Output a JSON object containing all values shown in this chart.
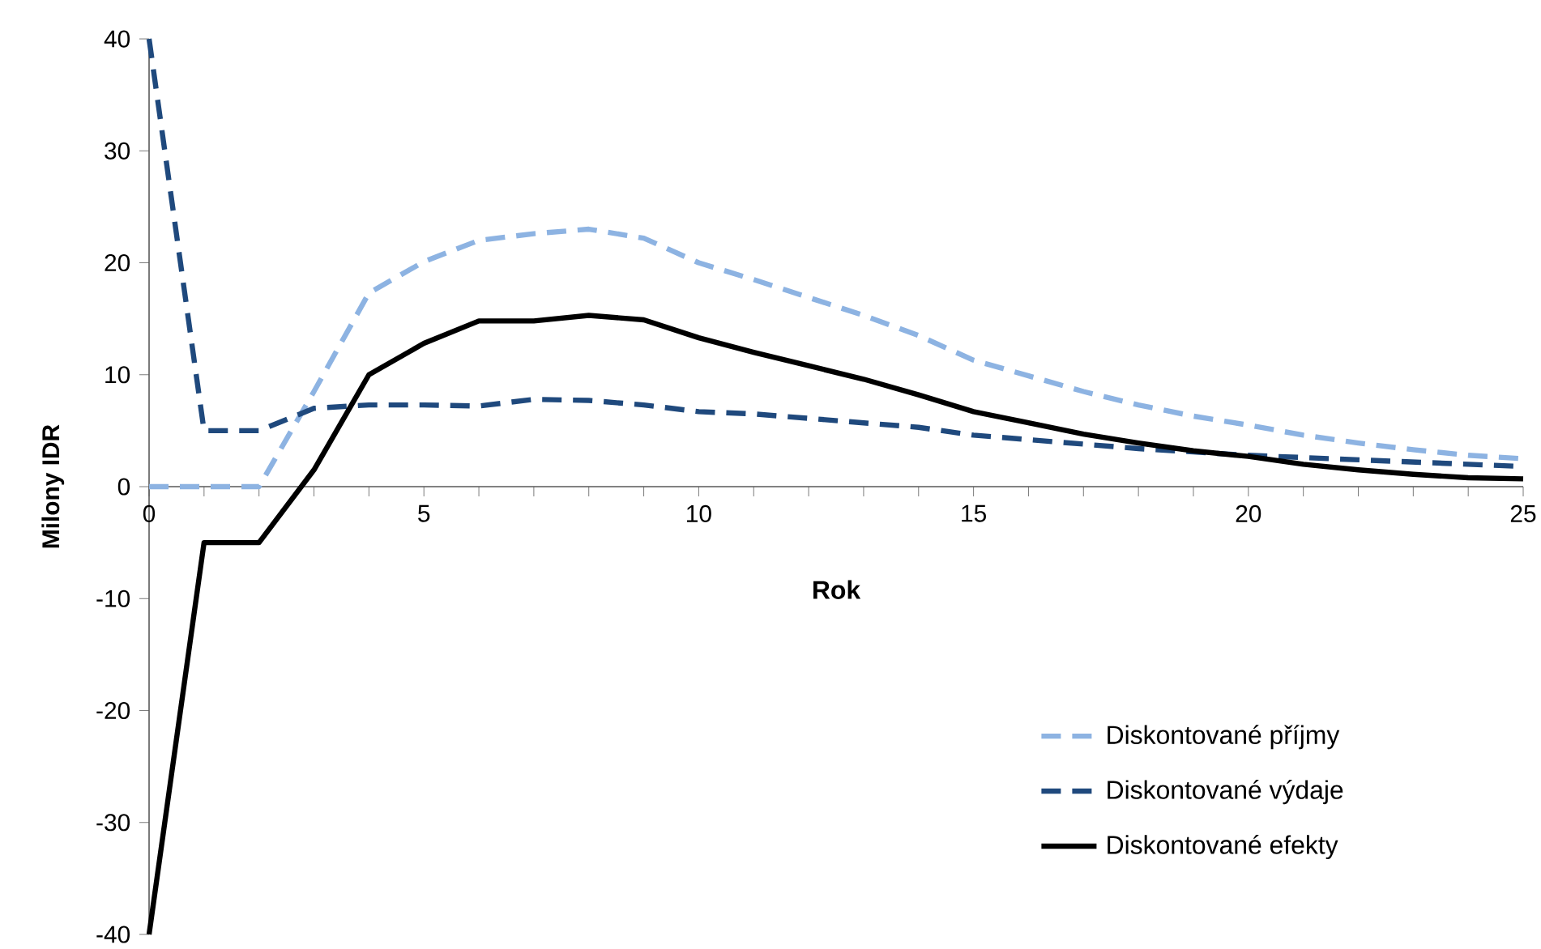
{
  "chart_data": {
    "type": "line",
    "xlabel": "Rok",
    "ylabel": "Milony IDR",
    "x": [
      0,
      1,
      2,
      3,
      4,
      5,
      6,
      7,
      8,
      9,
      10,
      11,
      12,
      13,
      14,
      15,
      16,
      17,
      18,
      19,
      20,
      21,
      22,
      23,
      24,
      25
    ],
    "series": [
      {
        "name": "Diskontované příjmy",
        "color": "#8db3e2",
        "line_style": "dashed",
        "values": [
          0,
          0,
          0,
          8.5,
          17.3,
          20.1,
          22,
          22.6,
          23,
          22.2,
          20,
          18.5,
          16.9,
          15.3,
          13.5,
          11.3,
          9.9,
          8.5,
          7.3,
          6.3,
          5.5,
          4.6,
          3.9,
          3.3,
          2.8,
          2.5
        ]
      },
      {
        "name": "Diskontované výdaje",
        "color": "#1f497d",
        "line_style": "dashed",
        "values": [
          40,
          5,
          5,
          7,
          7.3,
          7.3,
          7.2,
          7.8,
          7.7,
          7.3,
          6.7,
          6.5,
          6.1,
          5.7,
          5.3,
          4.6,
          4.2,
          3.8,
          3.4,
          3.1,
          2.8,
          2.6,
          2.4,
          2.2,
          2,
          1.8
        ]
      },
      {
        "name": "Diskontované efekty",
        "color": "#000000",
        "line_style": "solid",
        "values": [
          -40,
          -5,
          -5,
          1.5,
          10,
          12.8,
          14.8,
          14.8,
          15.3,
          14.9,
          13.3,
          12,
          10.8,
          9.6,
          8.2,
          6.7,
          5.7,
          4.7,
          3.9,
          3.2,
          2.7,
          2,
          1.5,
          1.1,
          0.8,
          0.7
        ]
      }
    ],
    "xlim": [
      0,
      25
    ],
    "xticks": [
      0,
      {
        "value": 1,
        "label": null
      },
      {
        "value": 2,
        "label": null
      },
      {
        "value": 3,
        "label": null
      },
      {
        "value": 4,
        "label": null
      },
      5,
      {
        "value": 6,
        "label": null
      },
      {
        "value": 7,
        "label": null
      },
      {
        "value": 8,
        "label": null
      },
      {
        "value": 9,
        "label": null
      },
      10,
      {
        "value": 11,
        "label": null
      },
      {
        "value": 12,
        "label": null
      },
      {
        "value": 13,
        "label": null
      },
      {
        "value": 14,
        "label": null
      },
      15,
      {
        "value": 16,
        "label": null
      },
      {
        "value": 17,
        "label": null
      },
      {
        "value": 18,
        "label": null
      },
      {
        "value": 19,
        "label": null
      },
      20,
      {
        "value": 21,
        "label": null
      },
      {
        "value": 22,
        "label": null
      },
      {
        "value": 23,
        "label": null
      },
      {
        "value": 24,
        "label": null
      },
      25
    ],
    "ylim": [
      -40,
      40
    ],
    "yticks": [
      -40,
      -30,
      -20,
      -10,
      0,
      10,
      20,
      30,
      40
    ],
    "grid": false,
    "legend": "bottom right",
    "marker": "none"
  }
}
